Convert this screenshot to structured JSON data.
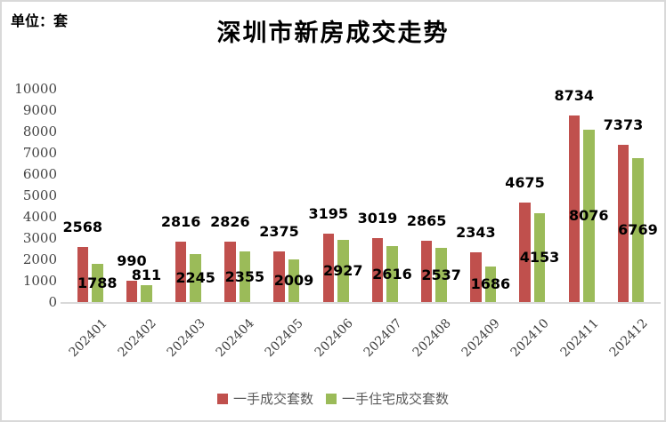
{
  "chart_data": {
    "type": "bar",
    "title": "深圳市新房成交走势",
    "unit_label": "单位：套",
    "categories": [
      "202401",
      "202402",
      "202403",
      "202404",
      "202405",
      "202406",
      "202407",
      "202408",
      "202409",
      "202410",
      "202411",
      "202412"
    ],
    "series": [
      {
        "name": "一手成交套数",
        "color": "#C0504D",
        "values": [
          2568,
          990,
          2816,
          2826,
          2375,
          3195,
          3019,
          2865,
          2343,
          4675,
          8734,
          7373
        ]
      },
      {
        "name": "一手住宅成交套数",
        "color": "#9BBB59",
        "values": [
          1788,
          811,
          2245,
          2355,
          2009,
          2927,
          2616,
          2537,
          1686,
          4153,
          8076,
          6769
        ]
      }
    ],
    "ylim": [
      0,
      10000
    ],
    "ytick_step": 1000,
    "grid": false,
    "legend_position": "bottom",
    "axis_line_color": "#D9D9D9",
    "tick_label_color": "#444444",
    "data_label_color": "#000000",
    "legend_text_color": "#595959"
  }
}
